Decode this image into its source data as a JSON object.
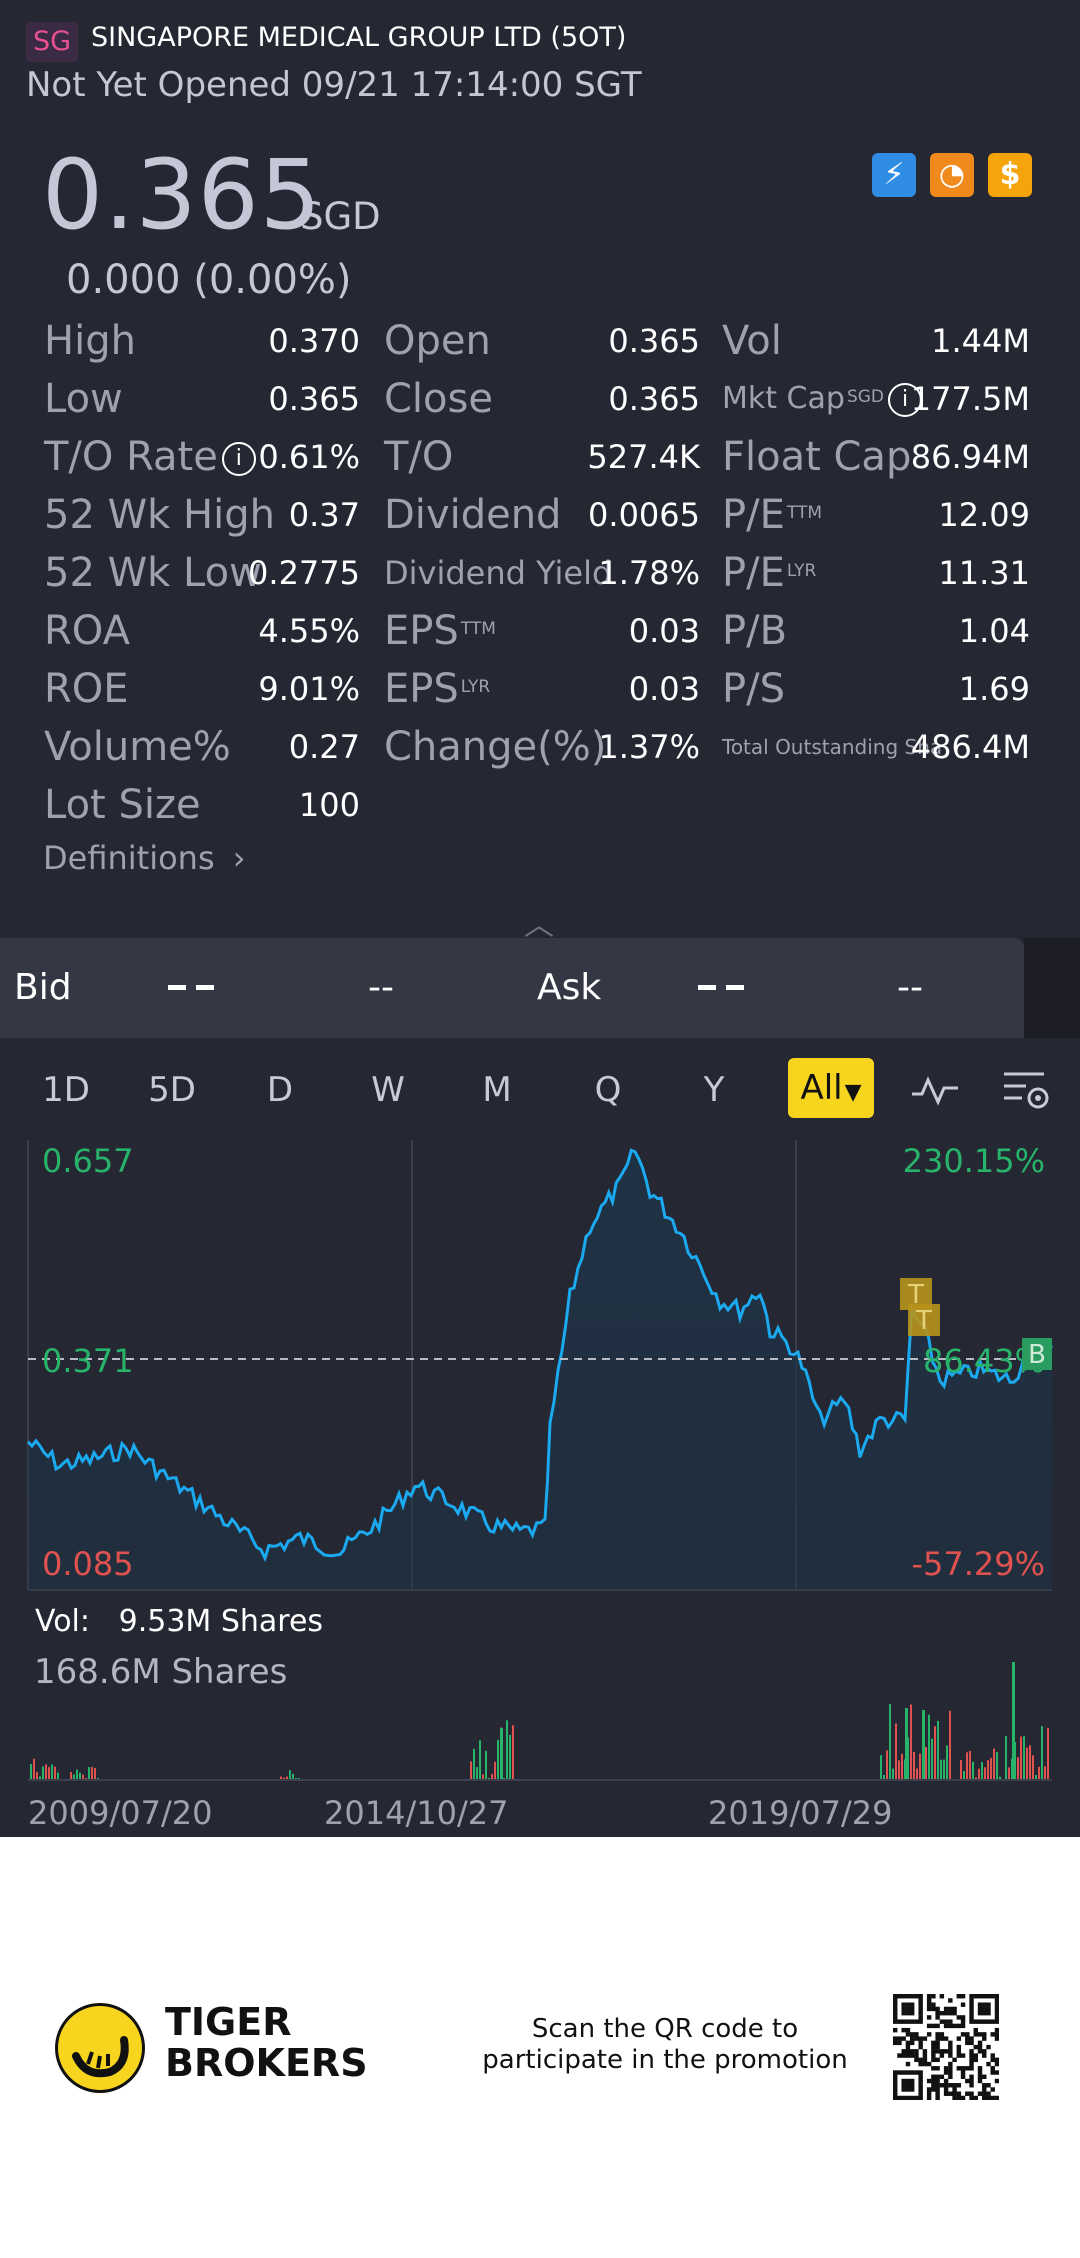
{
  "header": {
    "market_badge": "SG",
    "title": "SINGAPORE MEDICAL GROUP LTD (5OT)",
    "status": "Not Yet Opened 09/21 17:14:00 SGT"
  },
  "quote": {
    "price": "0.365",
    "currency": "SGD",
    "change": "0.000 (0.00%)",
    "icons": [
      "lightning-level1-icon",
      "gauge-icon",
      "dollar-icon"
    ],
    "icon_colors": [
      "#2f8de4",
      "#f08a1c",
      "#f5a40b"
    ]
  },
  "stats": {
    "col1": [
      {
        "label": "High",
        "value": "0.370"
      },
      {
        "label": "Low",
        "value": "0.365"
      },
      {
        "label": "T/O Rate",
        "value": "0.61%"
      },
      {
        "label": "52 Wk High",
        "value": "0.37"
      },
      {
        "label": "52 Wk Low",
        "value": "0.2775"
      },
      {
        "label": "ROA",
        "value": "4.55%"
      },
      {
        "label": "ROE",
        "value": "9.01%"
      },
      {
        "label": "Volume%",
        "value": "0.27"
      },
      {
        "label": "Lot Size",
        "value": "100"
      }
    ],
    "col2": [
      {
        "label": "Open",
        "sup": "",
        "value": "0.365"
      },
      {
        "label": "Close",
        "sup": "",
        "value": "0.365"
      },
      {
        "label": "T/O",
        "sup": "",
        "value": "527.4K"
      },
      {
        "label": "Dividend",
        "sup": "",
        "value": "0.0065"
      },
      {
        "label": "Dividend Yield",
        "sup": "",
        "value": "1.78%"
      },
      {
        "label": "EPS",
        "sup": "TTM",
        "value": "0.03"
      },
      {
        "label": "EPS",
        "sup": "LYR",
        "value": "0.03"
      },
      {
        "label": "Change(%)",
        "sup": "",
        "value": "1.37%"
      }
    ],
    "col3": [
      {
        "label": "Vol",
        "sup": "",
        "value": "1.44M"
      },
      {
        "label": "Mkt Cap",
        "sup": "SGD",
        "value": "177.5M"
      },
      {
        "label": "Float Cap",
        "sup": "",
        "value": "86.94M"
      },
      {
        "label": "P/E",
        "sup": "TTM",
        "value": "12.09"
      },
      {
        "label": "P/E",
        "sup": "LYR",
        "value": "11.31"
      },
      {
        "label": "P/B",
        "sup": "",
        "value": "1.04"
      },
      {
        "label": "P/S",
        "sup": "",
        "value": "1.69"
      },
      {
        "label": "Total Outstanding Sha",
        "sup": "",
        "value": "486.4M"
      }
    ],
    "definitions": "Definitions",
    "info_glyph": "i"
  },
  "orderbook": {
    "bid_label": "Bid",
    "bid_placeholder": "--",
    "ask_label": "Ask",
    "ask_placeholder": "--"
  },
  "tabs": [
    "1D",
    "5D",
    "D",
    "W",
    "M",
    "Q",
    "Y"
  ],
  "tab_selected": "All",
  "chart": {
    "price_top": "0.657",
    "price_mid": "0.371",
    "price_bottom": "0.085",
    "pct_top": "230.15%",
    "pct_mid": "86.43%",
    "pct_bottom": "-57.29%",
    "marker_t": "T",
    "marker_b": "B",
    "colors": {
      "line": "#1ba9f0",
      "up": "#28b36b",
      "down": "#e0524f"
    },
    "vol_label": "Vol:",
    "vol_value": "9.53M Shares",
    "vol_max": "168.6M Shares",
    "dates": [
      "2009/07/20",
      "2014/10/27",
      "2019/07/29"
    ]
  },
  "footer": {
    "brand_line1": "TIGER",
    "brand_line2": "BROKERS",
    "promo_line1": "Scan the QR code to",
    "promo_line2": "participate in the promotion"
  }
}
